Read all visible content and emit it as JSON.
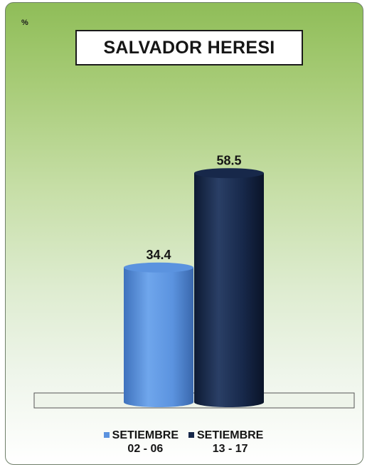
{
  "chart_data": {
    "type": "bar",
    "title": "SALVADOR HERESI",
    "unit_label": "%",
    "categories": [
      "SETIEMBRE\n02 - 06",
      "SETIEMBRE\n13 - 17"
    ],
    "values": [
      34.4,
      58.5
    ],
    "value_labels": [
      "34.4",
      "58.5"
    ],
    "colors": [
      "#5b93df",
      "#17284a"
    ],
    "ylim": [
      0,
      70
    ],
    "legend_position": "bottom",
    "grid": false
  },
  "legend": [
    {
      "line1": "SETIEMBRE",
      "line2": "02 - 06",
      "color": "#5b93df"
    },
    {
      "line1": "SETIEMBRE",
      "line2": "13 - 17",
      "color": "#17284a"
    }
  ]
}
